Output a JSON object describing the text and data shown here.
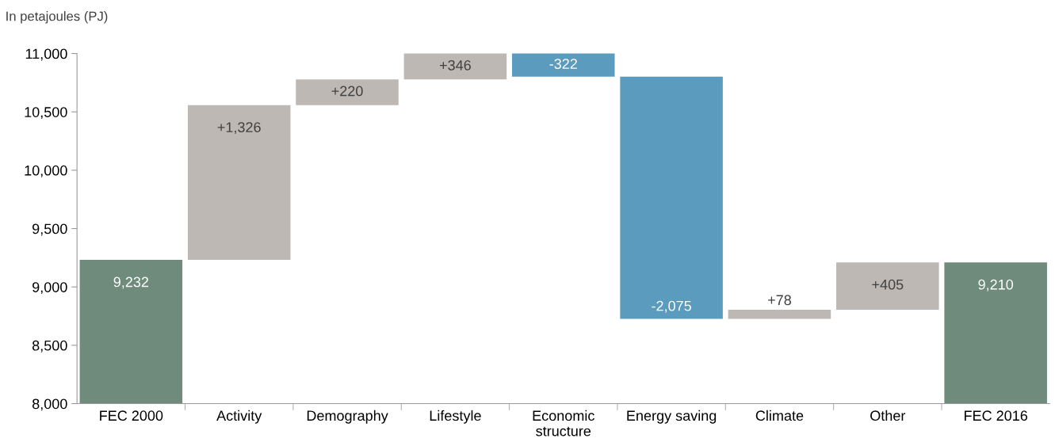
{
  "chart_data": {
    "type": "bar",
    "ylabel": "In petajoules (PJ)",
    "categories": [
      "FEC 2000",
      "Activity",
      "Demography",
      "Lifestyle",
      "Economic\nstructure",
      "Energy saving",
      "Climate",
      "Other",
      "FEC 2016"
    ],
    "values": [
      9232,
      1326,
      220,
      346,
      -322,
      -2075,
      78,
      405,
      9210
    ],
    "base": [
      null,
      9232,
      10558,
      10778,
      11124,
      10802,
      8727,
      8805,
      null
    ],
    "colors": [
      "#6e8b7c",
      "#bdb8b4",
      "#bdb8b4",
      "#bdb8b4",
      "#5b9bbe",
      "#5b9bbe",
      "#bdb8b4",
      "#bdb8b4",
      "#6e8b7c"
    ],
    "value_labels": [
      "9,232",
      "+1,326",
      "+220",
      "+346",
      "-322",
      "-2,075",
      "+78",
      "+405",
      "9,210"
    ],
    "ylim": [
      8000,
      11000
    ],
    "yticks": [
      {
        "value": 8000,
        "label": "8,000"
      },
      {
        "value": 8500,
        "label": "8,500"
      },
      {
        "value": 9000,
        "label": "9,000"
      },
      {
        "value": 9500,
        "label": "9,500"
      },
      {
        "value": 10000,
        "label": "10,000"
      },
      {
        "value": 10500,
        "label": "10,500"
      },
      {
        "value": 11000,
        "label": "11,000"
      }
    ],
    "grid": false,
    "legend": false
  }
}
